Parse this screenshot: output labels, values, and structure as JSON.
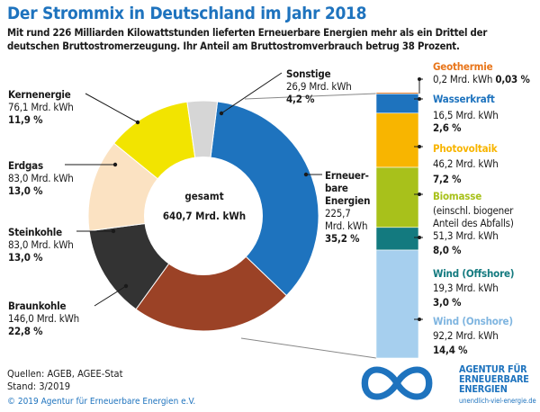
{
  "title": "Der Strommix in Deutschland im Jahr 2018",
  "subtitle": "Mit rund 226 Milliarden Kilowattstunden lieferten Erneuerbare Energien mehr als ein Drittel der deutschen Bruttostromerzeugung. Ihr Anteil am Bruttostromverbrauch betrug 38 Prozent.",
  "center": {
    "label": "gesamt",
    "value": "640,7 Mrd. kWh"
  },
  "colors": {
    "erneuerbare": "#1e73be",
    "braunkohle": "#9b4226",
    "steinkohle": "#333333",
    "erdgas": "#fbe2c2",
    "kernenergie": "#f2e400",
    "sonstige": "#d6d6d6",
    "geothermie": "#e8751a",
    "wasserkraft": "#1e73be",
    "photovoltaik": "#f8b500",
    "biomasse": "#a8c11b",
    "wind_offshore": "#137a7f",
    "wind_onshore": "#a6cfee"
  },
  "chart_data": [
    {
      "type": "pie",
      "total": "640,7 Mrd. kWh",
      "slices": [
        {
          "name": "Erneuerbare Energien",
          "value": 225.7,
          "value_label": "225,7 Mrd. kWh",
          "percent": "35,2 %"
        },
        {
          "name": "Braunkohle",
          "value": 146.0,
          "value_label": "146,0 Mrd. kWh",
          "percent": "22,8 %"
        },
        {
          "name": "Steinkohle",
          "value": 83.0,
          "value_label": "83,0 Mrd. kWh",
          "percent": "13,0 %"
        },
        {
          "name": "Erdgas",
          "value": 83.0,
          "value_label": "83,0 Mrd. kWh",
          "percent": "13,0 %"
        },
        {
          "name": "Kernenergie",
          "value": 76.1,
          "value_label": "76,1 Mrd. kWh",
          "percent": "11,9 %"
        },
        {
          "name": "Sonstige",
          "value": 26.9,
          "value_label": "26,9 Mrd. kWh",
          "percent": "4,2 %"
        }
      ]
    },
    {
      "type": "bar",
      "stacked": true,
      "segments": [
        {
          "name": "Geothermie",
          "value": 0.2,
          "value_label": "0,2 Mrd. kWh",
          "percent": "0,03 %"
        },
        {
          "name": "Wasserkraft",
          "value": 16.5,
          "value_label": "16,5 Mrd. kWh",
          "percent": "2,6 %"
        },
        {
          "name": "Photovoltaik",
          "value": 46.2,
          "value_label": "46,2 Mrd. kWh",
          "percent": "7,2 %"
        },
        {
          "name": "Biomasse",
          "note": "(einschl. biogener Anteil des Abfalls)",
          "value": 51.3,
          "value_label": "51,3 Mrd. kWh",
          "percent": "8,0 %"
        },
        {
          "name": "Wind (Offshore)",
          "value": 19.3,
          "value_label": "19,3 Mrd. kWh",
          "percent": "3,0 %"
        },
        {
          "name": "Wind (Onshore)",
          "value": 92.2,
          "value_label": "92,2 Mrd. kWh",
          "percent": "14,4 %"
        }
      ]
    }
  ],
  "labels": {
    "kernenergie": {
      "name": "Kernenergie",
      "value": "76,1 Mrd. kWh",
      "pct": "11,9 %"
    },
    "erdgas": {
      "name": "Erdgas",
      "value": "83,0 Mrd. kWh",
      "pct": "13,0 %"
    },
    "steinkohle": {
      "name": "Steinkohle",
      "value": "83,0 Mrd. kWh",
      "pct": "13,0 %"
    },
    "braunkohle": {
      "name": "Braunkohle",
      "value": "146,0 Mrd. kWh",
      "pct": "22,8 %"
    },
    "sonstige": {
      "name": "Sonstige",
      "value": "26,9 Mrd. kWh",
      "pct": "4,2 %"
    },
    "erneuerbare": {
      "name1": "Erneuer-",
      "name2": "bare",
      "name3": "Energien",
      "value1": "225,7",
      "value2": "Mrd. kWh",
      "pct": "35,2 %"
    },
    "geothermie": {
      "name": "Geothermie",
      "value": "0,2 Mrd. kWh",
      "pct": "0,03 %"
    },
    "wasserkraft": {
      "name": "Wasserkraft",
      "value": "16,5 Mrd. kWh",
      "pct": "2,6 %"
    },
    "photovoltaik": {
      "name": "Photovoltaik",
      "value": "46,2 Mrd. kWh",
      "pct": "7,2 %"
    },
    "biomasse": {
      "name": "Biomasse",
      "note1": "(einschl. biogener",
      "note2": "Anteil des Abfalls)",
      "value": "51,3 Mrd. kWh",
      "pct": "8,0 %"
    },
    "wind_offshore": {
      "name": "Wind (Offshore)",
      "value": "19,3 Mrd. kWh",
      "pct": "3,0 %"
    },
    "wind_onshore": {
      "name": "Wind (Onshore)",
      "value": "92,2 Mrd. kWh",
      "pct": "14,4 %"
    }
  },
  "footer": {
    "sources": "Quellen: AGEB, AGEE-Stat",
    "stand": "Stand: 3/2019",
    "copyright": "© 2019 Agentur für Erneuerbare Energien e.V."
  },
  "logo": {
    "line1": "AGENTUR FÜR",
    "line2": "ERNEUERBARE",
    "line3": "ENERGIEN",
    "url": "unendlich-viel-energie.de",
    "icon": "infinity-icon"
  }
}
